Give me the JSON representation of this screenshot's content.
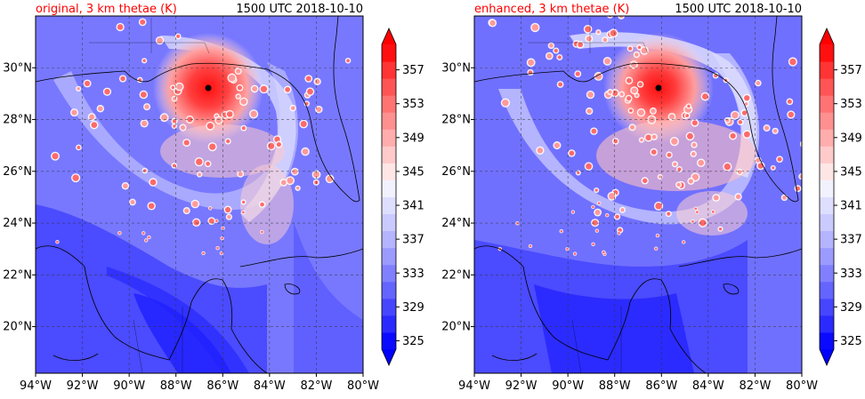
{
  "chart_data": [
    {
      "type": "heatmap",
      "title_left": "original, 3 km thetae (K)",
      "title_right": "1500 UTC 2018-10-10",
      "x_ticks": [
        "94°W",
        "92°W",
        "90°W",
        "88°W",
        "86°W",
        "84°W",
        "82°W",
        "80°W"
      ],
      "y_ticks": [
        "20°N",
        "22°N",
        "24°N",
        "26°N",
        "28°N",
        "30°N"
      ],
      "xlim": [
        -94,
        -80
      ],
      "ylim": [
        18.2,
        32
      ],
      "storm_center": {
        "lon": -86.6,
        "lat": 29.4
      },
      "grid": true
    },
    {
      "type": "heatmap",
      "title_left": "enhanced, 3 km thetae (K)",
      "title_right": "1500 UTC 2018-10-10",
      "x_ticks": [
        "94°W",
        "92°W",
        "90°W",
        "88°W",
        "86°W",
        "84°W",
        "82°W",
        "80°W"
      ],
      "y_ticks": [
        "20°N",
        "22°N",
        "24°N",
        "26°N",
        "28°N",
        "30°N"
      ],
      "xlim": [
        -94,
        -80
      ],
      "ylim": [
        18.2,
        32
      ],
      "storm_center": {
        "lon": -86.0,
        "lat": 29.4
      },
      "grid": true
    }
  ],
  "colorbar": {
    "ticks": [
      "325",
      "329",
      "333",
      "337",
      "341",
      "345",
      "349",
      "353",
      "357"
    ],
    "levels": [
      325,
      327,
      329,
      331,
      333,
      335,
      337,
      339,
      341,
      343,
      345,
      347,
      349,
      351,
      353,
      355,
      357,
      359
    ],
    "colors": [
      "#0a0aff",
      "#2a2aff",
      "#4646ff",
      "#6464ff",
      "#8080ff",
      "#9b9bff",
      "#b4b4ff",
      "#cacaff",
      "#dedeff",
      "#f2f2ff",
      "#ffe6e6",
      "#ffcaca",
      "#ffadad",
      "#ff9090",
      "#ff7373",
      "#ff5555",
      "#ff3434",
      "#ff1010"
    ],
    "extend_low_color": "#0000ff",
    "extend_high_color": "#ff0000"
  },
  "title_color": "#ff0000"
}
